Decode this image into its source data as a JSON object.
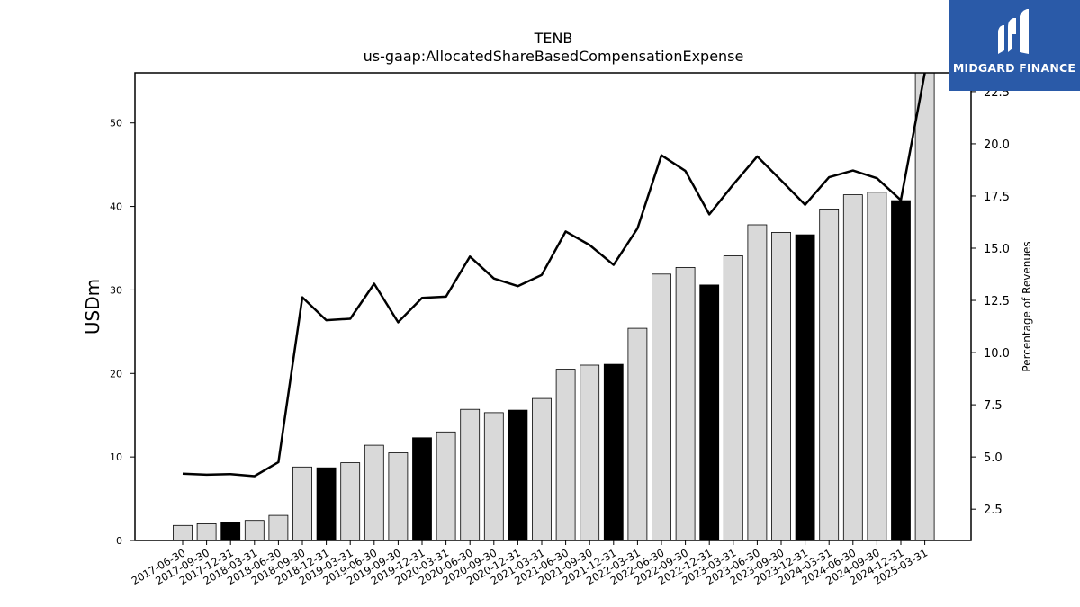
{
  "brand": {
    "name": "MIDGARD FINANCE",
    "bg_color": "#2a5aa8"
  },
  "chart_data": {
    "type": "bar",
    "title": "TENB",
    "subtitle": "us-gaap:AllocatedShareBasedCompensationExpense",
    "ylabel": "USDm",
    "ylabel_right": "Percentage of Revenues",
    "ylim": [
      0,
      56
    ],
    "ylim_right": [
      1.0,
      23.4
    ],
    "yticks": [
      0,
      10,
      20,
      30,
      40,
      50
    ],
    "yticks_right": [
      "2.5",
      "5.0",
      "7.5",
      "10.0",
      "12.5",
      "15.0",
      "17.5",
      "20.0",
      "22.5"
    ],
    "categories": [
      "2017-06-30",
      "2017-09-30",
      "2017-12-31",
      "2018-03-31",
      "2018-06-30",
      "2018-09-30",
      "2018-12-31",
      "2019-03-31",
      "2019-06-30",
      "2019-09-30",
      "2019-12-31",
      "2020-03-31",
      "2020-06-30",
      "2020-09-30",
      "2020-12-31",
      "2021-03-31",
      "2021-06-30",
      "2021-09-30",
      "2021-12-31",
      "2022-03-31",
      "2022-06-30",
      "2022-09-30",
      "2022-12-31",
      "2023-03-31",
      "2023-06-30",
      "2023-09-30",
      "2023-12-31",
      "2024-03-31",
      "2024-06-30",
      "2024-09-30",
      "2024-12-31",
      "2025-03-31"
    ],
    "series": [
      {
        "type": "bar",
        "values": [
          1.8,
          2.0,
          2.2,
          2.4,
          3.0,
          8.8,
          8.7,
          9.3,
          11.4,
          10.5,
          12.3,
          13.0,
          15.7,
          15.3,
          15.6,
          17.0,
          20.5,
          21.0,
          21.1,
          25.4,
          31.9,
          32.7,
          30.6,
          34.1,
          37.8,
          36.9,
          36.6,
          39.7,
          41.4,
          41.7,
          40.7,
          56.0
        ],
        "highlight_every_q4": true,
        "colors": {
          "default": "#d9d9d9",
          "highlight": "#000000"
        }
      },
      {
        "type": "line",
        "axis": "right",
        "values": [
          4.2,
          4.15,
          4.18,
          4.08,
          4.75,
          12.65,
          11.55,
          11.62,
          13.3,
          11.45,
          12.62,
          12.68,
          14.6,
          13.55,
          13.18,
          13.72,
          15.8,
          15.15,
          14.2,
          15.95,
          19.45,
          18.7,
          16.62,
          18.05,
          19.4,
          18.25,
          17.08,
          18.4,
          18.72,
          18.35,
          17.3,
          23.6
        ],
        "color": "#000000"
      }
    ],
    "grid": false,
    "legend": "none"
  }
}
